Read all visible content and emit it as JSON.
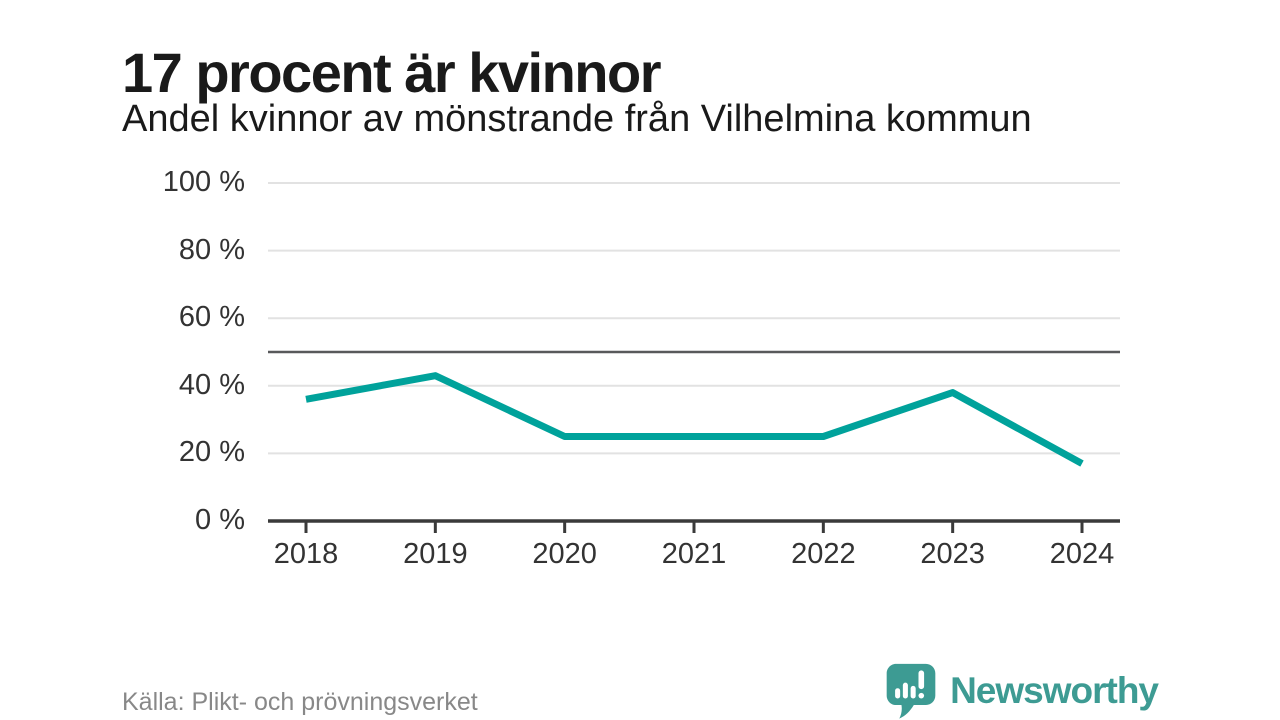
{
  "header": {
    "title": "17 procent är kvinnor",
    "subtitle": "Andel kvinnor av mönstrande från Vilhelmina kommun"
  },
  "chart_data": {
    "type": "line",
    "x": [
      "2018",
      "2019",
      "2020",
      "2021",
      "2022",
      "2023",
      "2024"
    ],
    "series": [
      {
        "name": "Andel kvinnor av mönstrande",
        "values": [
          36,
          43,
          25,
          25,
          25,
          38,
          17
        ]
      }
    ],
    "title": "17 procent är kvinnor",
    "subtitle": "Andel kvinnor av mönstrande från Vilhelmina kommun",
    "xlabel": "",
    "ylabel": "",
    "ylim": [
      0,
      100
    ],
    "yticks": [
      0,
      20,
      40,
      60,
      80,
      100
    ],
    "ytick_labels": [
      "0 %",
      "20 %",
      "40 %",
      "60 %",
      "80 %",
      "100 %"
    ],
    "xtick_labels": [
      "2018",
      "2019",
      "2020",
      "2021",
      "2022",
      "2023",
      "2024"
    ],
    "reference_line": 50,
    "grid": "horizontal-only",
    "legend": "none",
    "line_color": "#00a29b"
  },
  "footer": {
    "source": "Källa: Plikt- och prövningsverket",
    "logo_text": "Newsworthy"
  },
  "colors": {
    "accent_teal": "#00a29b",
    "logo_teal": "#3d9b93",
    "gridline": "#e2e2e2",
    "reference_line": "#58595b",
    "axis": "#3a3a3a",
    "axis_text": "#333333",
    "title_text": "#1a1a1a",
    "source_text": "#888888"
  }
}
